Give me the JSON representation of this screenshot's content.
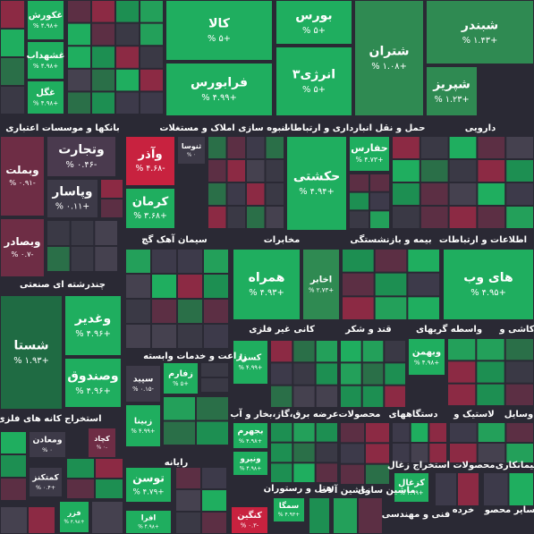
{
  "sectors": [
    "بانکها و موسسات اعتباری",
    "انبوه سازی املاک و مستغلات",
    "حمل و نقل انبارداری و ارتباطات",
    "دارویی",
    "سیمان آهک گچ",
    "مخابرات",
    "بیمه و بازنشستگی",
    "اطلاعات و ارتباطات",
    "چندرشته ای صنعتی",
    "کانی غیر فلزی",
    "قند و شکر",
    "واسطه گریهای",
    "کاشی و",
    "زراعت و خدمات وابسته",
    "استخراج کانه های فلزی",
    "عرضه برق،گاز،بخار و آب",
    "محصولات",
    "دستگاههای",
    "لاستیک و",
    "وسایل",
    "رایانه",
    "استخراج زغال",
    "محصولات",
    "سیمانکاری",
    "هتل و رستوران",
    "ماشین آلات",
    "ماشین سازی",
    "فنی و مهندسی",
    "خرده",
    "سایر محصو"
  ],
  "tiles": [
    {
      "name": "غکورش",
      "change": "+۴.۹۸ %"
    },
    {
      "name": "غشهداب",
      "change": "+۴.۹۸ %"
    },
    {
      "name": "غگل",
      "change": "+۴.۹۸ %"
    },
    {
      "name": "کالا",
      "change": "+۵ %"
    },
    {
      "name": "فرابورس",
      "change": "+۴.۹۹ %"
    },
    {
      "name": "بورس",
      "change": "+۵ %"
    },
    {
      "name": "انرژی۳",
      "change": "+۵ %"
    },
    {
      "name": "شبندر",
      "change": "+۱.۴۳ %"
    },
    {
      "name": "شتران",
      "change": "+۱.۰۸ %"
    },
    {
      "name": "شپریز",
      "change": "+۱.۲۳ %"
    },
    {
      "name": "وبملت",
      "change": "-۰.۹۱ %"
    },
    {
      "name": "وتجارت",
      "change": "-۰.۴۶ %"
    },
    {
      "name": "وپاسار",
      "change": "+۰.۱۱ %"
    },
    {
      "name": "وبصادر",
      "change": "-۰.۷ %"
    },
    {
      "name": "ثنوسا",
      "change": "۰ %"
    },
    {
      "name": "وآذر",
      "change": "-۴.۶۸ %"
    },
    {
      "name": "کرمان",
      "change": "+۳.۶۸ %"
    },
    {
      "name": "حفارس",
      "change": "+۴.۷۳ %"
    },
    {
      "name": "حکشتی",
      "change": "+۴.۹۴ %"
    },
    {
      "name": "همراه",
      "change": "+۴.۹۳ %"
    },
    {
      "name": "اخابر",
      "change": "+۲.۷۳ %"
    },
    {
      "name": "های وب",
      "change": "+۴.۹۵ %"
    },
    {
      "name": "شستا",
      "change": "+۱.۹۳ %"
    },
    {
      "name": "وغدیر",
      "change": "+۴.۹۶ %"
    },
    {
      "name": "وصندوق",
      "change": "+۴.۹۶ %"
    },
    {
      "name": "کسرا",
      "change": "+۴.۹۹ %"
    },
    {
      "name": "وبهمن",
      "change": "+۴.۹۸ %"
    },
    {
      "name": "زفارم",
      "change": "+۵ %"
    },
    {
      "name": "سپید",
      "change": "-۰.۱۵ %"
    },
    {
      "name": "زبینا",
      "change": "+۴.۹۹ %"
    },
    {
      "name": "بجهرم",
      "change": "+۴.۹۸ %"
    },
    {
      "name": "ونیرو",
      "change": "+۴.۹۸ %"
    },
    {
      "name": "ومعادن",
      "change": "۰ %"
    },
    {
      "name": "کچاد",
      "change": "-۰ %"
    },
    {
      "name": "کمتکنز",
      "change": "+۰.۴ %"
    },
    {
      "name": "توسن",
      "change": "+۴.۷۹ %"
    },
    {
      "name": "کزغال",
      "change": "+۴.۹۹ %"
    },
    {
      "name": "فزر",
      "change": "+۴.۹۸ %"
    },
    {
      "name": "افرا",
      "change": "+۴.۹۸ %"
    },
    {
      "name": "سمگا",
      "change": "+۴.۹۳ %"
    },
    {
      "name": "کنگین",
      "change": "-۰.۳ %"
    }
  ]
}
